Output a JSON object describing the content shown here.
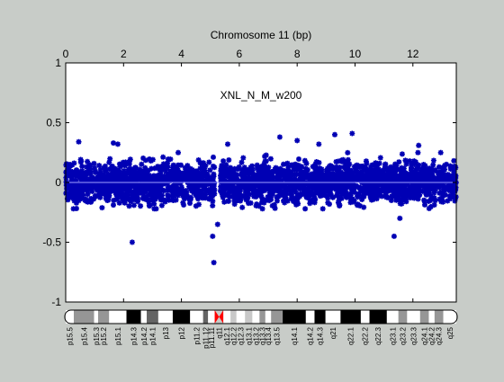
{
  "chart_data": {
    "type": "scatter",
    "title": "Chromosome 11 (bp)",
    "annotation": "XNL_N_M_w200",
    "xlabel": "",
    "ylabel": "",
    "xlim": [
      0,
      13.5
    ],
    "ylim": [
      -1,
      1
    ],
    "x_ticks": [
      0,
      2,
      4,
      6,
      8,
      10,
      12
    ],
    "x_tick_labels": [
      "0",
      "2",
      "4",
      "6",
      "8",
      "10",
      "12"
    ],
    "y_ticks": [
      1,
      0.5,
      0,
      -0.5,
      -1
    ],
    "y_tick_labels": [
      "1",
      "0.5",
      "0",
      "-0.5",
      "-1"
    ],
    "reference_line_y": 0,
    "grid": false,
    "legend": "none",
    "x_axis_position": "top",
    "marker": "asterisk",
    "colors": {
      "background": "#c8ccc8",
      "plot_area": "#ffffff",
      "points": "#0000b4",
      "reference_line": "#a0a0ff",
      "centromere": "#ff0000"
    },
    "series": [
      {
        "values": "copy-number ratio points, about 7400 probes across the chromosome",
        "x_range": [
          0,
          13.5
        ],
        "band_y": [
          -0.22,
          0.25
        ],
        "centromere_gap_x": [
          5.15,
          5.35
        ],
        "notable_points": [
          {
            "x": 0.45,
            "y": 0.34
          },
          {
            "x": 1.65,
            "y": 0.33
          },
          {
            "x": 1.8,
            "y": 0.32
          },
          {
            "x": 2.3,
            "y": -0.5
          },
          {
            "x": 5.08,
            "y": -0.45
          },
          {
            "x": 5.12,
            "y": -0.67
          },
          {
            "x": 5.25,
            "y": -0.35
          },
          {
            "x": 5.6,
            "y": 0.32
          },
          {
            "x": 7.4,
            "y": 0.38
          },
          {
            "x": 8.0,
            "y": 0.35
          },
          {
            "x": 8.75,
            "y": 0.32
          },
          {
            "x": 9.3,
            "y": 0.4
          },
          {
            "x": 9.9,
            "y": 0.41
          },
          {
            "x": 11.35,
            "y": -0.45
          },
          {
            "x": 11.55,
            "y": -0.3
          },
          {
            "x": 12.2,
            "y": 0.31
          }
        ]
      }
    ],
    "ideogram": {
      "bands": [
        {
          "name": "p15.5",
          "start": 0.0,
          "end": 0.28,
          "stain": "gneg"
        },
        {
          "name": "p15.4",
          "start": 0.28,
          "end": 0.98,
          "stain": "gpos50"
        },
        {
          "name": "p15.3",
          "start": 0.98,
          "end": 1.12,
          "stain": "gneg"
        },
        {
          "name": "p15.2",
          "start": 1.12,
          "end": 1.5,
          "stain": "gpos50"
        },
        {
          "name": "p15.1",
          "start": 1.5,
          "end": 2.1,
          "stain": "gneg"
        },
        {
          "name": "p14.3",
          "start": 2.1,
          "end": 2.6,
          "stain": "gpos100"
        },
        {
          "name": "p14.2",
          "start": 2.6,
          "end": 2.8,
          "stain": "gneg"
        },
        {
          "name": "p14.1",
          "start": 2.8,
          "end": 3.2,
          "stain": "gpos75"
        },
        {
          "name": "p13",
          "start": 3.2,
          "end": 3.7,
          "stain": "gneg"
        },
        {
          "name": "p12",
          "start": 3.7,
          "end": 4.3,
          "stain": "gpos100"
        },
        {
          "name": "p11.2",
          "start": 4.3,
          "end": 4.75,
          "stain": "gneg"
        },
        {
          "name": "p11.12",
          "start": 4.75,
          "end": 4.92,
          "stain": "gpos75"
        },
        {
          "name": "p11.11",
          "start": 4.92,
          "end": 5.15,
          "stain": "gneg"
        },
        {
          "name": "q11",
          "start": 5.15,
          "end": 5.45,
          "stain": "acen"
        },
        {
          "name": "q12.1",
          "start": 5.45,
          "end": 5.7,
          "stain": "gneg"
        },
        {
          "name": "q12.2",
          "start": 5.7,
          "end": 5.9,
          "stain": "gpos25"
        },
        {
          "name": "q12.3",
          "start": 5.9,
          "end": 6.2,
          "stain": "gneg"
        },
        {
          "name": "q13.1",
          "start": 6.2,
          "end": 6.45,
          "stain": "gpos25"
        },
        {
          "name": "q13.2",
          "start": 6.45,
          "end": 6.7,
          "stain": "gneg"
        },
        {
          "name": "q13.3",
          "start": 6.7,
          "end": 6.9,
          "stain": "gpos50"
        },
        {
          "name": "q13.4",
          "start": 6.9,
          "end": 7.1,
          "stain": "gneg"
        },
        {
          "name": "q13.5",
          "start": 7.1,
          "end": 7.5,
          "stain": "gpos50"
        },
        {
          "name": "q14.1",
          "start": 7.5,
          "end": 8.3,
          "stain": "gpos100"
        },
        {
          "name": "q14.2",
          "start": 8.3,
          "end": 8.6,
          "stain": "gneg"
        },
        {
          "name": "q14.3",
          "start": 8.6,
          "end": 8.98,
          "stain": "gpos100"
        },
        {
          "name": "q21",
          "start": 8.98,
          "end": 9.5,
          "stain": "gneg"
        },
        {
          "name": "q22.1",
          "start": 9.5,
          "end": 10.2,
          "stain": "gpos100"
        },
        {
          "name": "q22.2",
          "start": 10.2,
          "end": 10.5,
          "stain": "gneg"
        },
        {
          "name": "q22.3",
          "start": 10.5,
          "end": 11.1,
          "stain": "gpos100"
        },
        {
          "name": "q23.1",
          "start": 11.1,
          "end": 11.5,
          "stain": "gneg"
        },
        {
          "name": "q23.2",
          "start": 11.5,
          "end": 11.8,
          "stain": "gpos50"
        },
        {
          "name": "q23.3",
          "start": 11.8,
          "end": 12.25,
          "stain": "gneg"
        },
        {
          "name": "q24.1",
          "start": 12.25,
          "end": 12.55,
          "stain": "gpos50"
        },
        {
          "name": "q24.2",
          "start": 12.55,
          "end": 12.75,
          "stain": "gneg"
        },
        {
          "name": "q24.3",
          "start": 12.75,
          "end": 13.05,
          "stain": "gpos50"
        },
        {
          "name": "q25",
          "start": 13.05,
          "end": 13.5,
          "stain": "gneg"
        }
      ],
      "stain_colors": {
        "gneg": "#ffffff",
        "gpos25": "#c8c8c8",
        "gpos50": "#969696",
        "gpos75": "#646464",
        "gpos100": "#000000",
        "acen": "#ff0000"
      }
    }
  }
}
